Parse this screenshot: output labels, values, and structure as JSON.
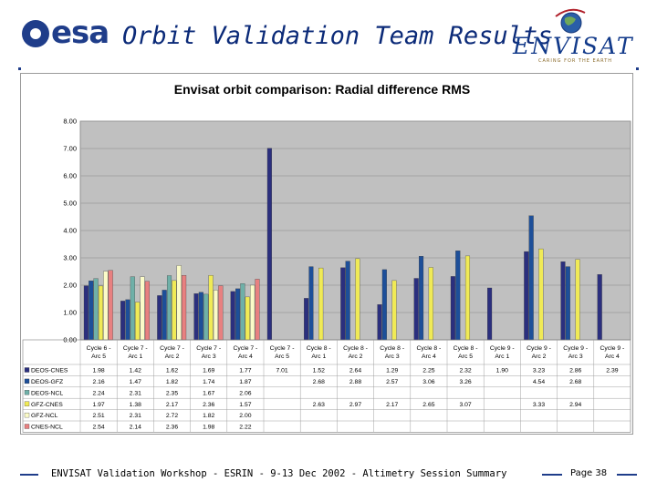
{
  "header": {
    "esa_logo_text": "esa",
    "title": "Orbit Validation Team Results",
    "envisat_logo_text": "ENVISAT",
    "envisat_tagline": "CARING FOR THE EARTH"
  },
  "footer": {
    "text": "ENVISAT Validation Workshop - ESRIN - 9-13 Dec 2002 - Altimetry Session Summary",
    "page": "Page 38"
  },
  "colors": {
    "plot_bg": "#c0c0c0",
    "panel_bg": "#ffffff"
  },
  "chart_data": {
    "type": "bar",
    "title": "Envisat orbit comparison: Radial difference RMS",
    "y_tick_labels": [
      "0.00",
      "1.00",
      "2.00",
      "3.00",
      "4.00",
      "5.00",
      "6.00",
      "7.00",
      "8.00"
    ],
    "ylim": [
      0,
      8
    ],
    "grid": true,
    "legend_position": "bottom",
    "categories": [
      "Cycle 6 - Arc 5",
      "Cycle 7 - Arc 1",
      "Cycle 7 - Arc 2",
      "Cycle 7 - Arc 3",
      "Cycle 7 - Arc 4",
      "Cycle 7 - Arc 5",
      "Cycle 8 - Arc 1",
      "Cycle 8 - Arc 2",
      "Cycle 8 - Arc 3",
      "Cycle 8 - Arc 4",
      "Cycle 8 - Arc 5",
      "Cycle 9 - Arc 1",
      "Cycle 9 - Arc 2",
      "Cycle 9 - Arc 3",
      "Cycle 9 - Arc 4"
    ],
    "series": [
      {
        "name": "DEOS-CNES",
        "color": "#2b2f7e",
        "values": [
          1.98,
          1.42,
          1.62,
          1.69,
          1.77,
          7.01,
          1.52,
          2.64,
          1.29,
          2.25,
          2.32,
          1.9,
          3.23,
          2.86,
          2.39
        ],
        "labels": [
          "1.98",
          "1.42",
          "1.62",
          "1.69",
          "1.77",
          "7.01",
          "1.52",
          "2.64",
          "1.29",
          "2.25",
          "2.32",
          "1.90",
          "3.23",
          "2.86",
          "2.39"
        ]
      },
      {
        "name": "DEOS-GFZ",
        "color": "#1d4f99",
        "values": [
          2.16,
          1.47,
          1.82,
          1.74,
          1.87,
          null,
          2.68,
          2.88,
          2.57,
          3.06,
          3.26,
          null,
          4.54,
          2.68,
          null
        ],
        "labels": [
          "2.16",
          "1.47",
          "1.82",
          "1.74",
          "1.87",
          "",
          "2.68",
          "2.88",
          "2.57",
          "3.06",
          "3.26",
          "",
          "4.54",
          "2.68",
          ""
        ]
      },
      {
        "name": "DEOS-NCL",
        "color": "#6fb0a8",
        "values": [
          2.24,
          2.31,
          2.35,
          1.67,
          2.06,
          null,
          null,
          null,
          null,
          null,
          null,
          null,
          null,
          null,
          null
        ],
        "labels": [
          "2.24",
          "2.31",
          "2.35",
          "1.67",
          "2.06",
          "",
          "",
          "",
          "",
          "",
          "",
          "",
          "",
          "",
          ""
        ]
      },
      {
        "name": "GFZ-CNES",
        "color": "#f0ea56",
        "values": [
          1.97,
          1.38,
          2.17,
          2.36,
          1.57,
          null,
          2.63,
          2.97,
          2.17,
          2.65,
          3.07,
          null,
          3.33,
          2.94,
          null
        ],
        "labels": [
          "1.97",
          "1.38",
          "2.17",
          "2.36",
          "1.57",
          "",
          "2.63",
          "2.97",
          "2.17",
          "2.65",
          "3.07",
          "",
          "3.33",
          "2.94",
          ""
        ]
      },
      {
        "name": "GFZ-NCL",
        "color": "#fbfbc8",
        "values": [
          2.51,
          2.31,
          2.72,
          1.82,
          2.0,
          null,
          null,
          null,
          null,
          null,
          null,
          null,
          null,
          null,
          null
        ],
        "labels": [
          "2.51",
          "2.31",
          "2.72",
          "1.82",
          "2.00",
          "",
          "",
          "",
          "",
          "",
          "",
          "",
          "",
          "",
          ""
        ]
      },
      {
        "name": "CNES-NCL",
        "color": "#e88080",
        "values": [
          2.54,
          2.14,
          2.36,
          1.98,
          2.22,
          null,
          null,
          null,
          null,
          null,
          null,
          null,
          null,
          null,
          null
        ],
        "labels": [
          "2.54",
          "2.14",
          "2.36",
          "1.98",
          "2.22",
          "",
          "",
          "",
          "",
          "",
          "",
          "",
          "",
          "",
          ""
        ]
      }
    ]
  }
}
